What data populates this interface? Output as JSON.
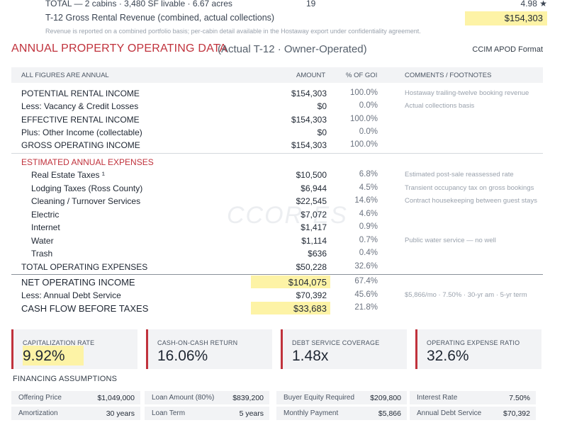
{
  "top": {
    "total_label": "TOTAL — 2 cabins  ·  3,480 SF livable  ·  6.67 acres",
    "total_count": "19",
    "total_rating": "4.98 ★",
    "revenue_label": "T-12 Gross Rental Revenue (combined, actual collections)",
    "revenue_value": "$154,303",
    "note": "Revenue is reported on a combined portfolio basis; per-cabin detail available in the Hostaway export under confidentiality agreement."
  },
  "header": {
    "title": "ANNUAL PROPERTY OPERATING DATA",
    "subtitle": "(Actual T-12 · Owner-Operated)",
    "format": "CCIM APOD Format"
  },
  "columns": {
    "label": "ALL FIGURES ARE ANNUAL",
    "amount": "AMOUNT",
    "pct": "% OF GOI",
    "comments": "COMMENTS / FOOTNOTES"
  },
  "income": [
    {
      "label": "POTENTIAL RENTAL INCOME",
      "amount": "$154,303",
      "pct": "100.0%",
      "comment": "Hostaway trailing-twelve booking revenue"
    },
    {
      "label": "Less: Vacancy & Credit Losses",
      "amount": "$0",
      "pct": "0.0%",
      "comment": "Actual collections basis"
    },
    {
      "label": "EFFECTIVE RENTAL INCOME",
      "amount": "$154,303",
      "pct": "100.0%",
      "comment": ""
    },
    {
      "label": "Plus: Other Income (collectable)",
      "amount": "$0",
      "pct": "0.0%",
      "comment": ""
    },
    {
      "label": "GROSS OPERATING INCOME",
      "amount": "$154,303",
      "pct": "100.0%",
      "comment": ""
    }
  ],
  "expenses_title": "ESTIMATED ANNUAL EXPENSES",
  "expenses": [
    {
      "label": "Real Estate Taxes ¹",
      "amount": "$10,500",
      "pct": "6.8%",
      "comment": "Estimated post-sale reassessed rate"
    },
    {
      "label": "Lodging Taxes (Ross County)",
      "amount": "$6,944",
      "pct": "4.5%",
      "comment": "Transient occupancy tax on gross bookings"
    },
    {
      "label": "Cleaning / Turnover Services",
      "amount": "$22,545",
      "pct": "14.6%",
      "comment": "Contract housekeeping between guest stays"
    },
    {
      "label": "Electric",
      "amount": "$7,072",
      "pct": "4.6%",
      "comment": ""
    },
    {
      "label": "Internet",
      "amount": "$1,417",
      "pct": "0.9%",
      "comment": ""
    },
    {
      "label": "Water",
      "amount": "$1,114",
      "pct": "0.7%",
      "comment": "Public water service — no well"
    },
    {
      "label": "Trash",
      "amount": "$636",
      "pct": "0.4%",
      "comment": ""
    }
  ],
  "total_expenses": {
    "label": "TOTAL OPERATING EXPENSES",
    "amount": "$50,228",
    "pct": "32.6%"
  },
  "noi": {
    "label": "NET OPERATING INCOME",
    "amount": "$104,075",
    "pct": "67.4%"
  },
  "debt": {
    "label": "Less: Annual Debt Service",
    "amount": "$70,392",
    "pct": "45.6%",
    "comment": "$5,866/mo · 7.50% · 30-yr am · 5-yr term"
  },
  "cfbt": {
    "label": "CASH FLOW BEFORE TAXES",
    "amount": "$33,683",
    "pct": "21.8%"
  },
  "metrics": [
    {
      "label": "CAPITALIZATION RATE",
      "value": "9.92%"
    },
    {
      "label": "CASH-ON-CASH RETURN",
      "value": "16.06%"
    },
    {
      "label": "DEBT SERVICE COVERAGE",
      "value": "1.48x"
    },
    {
      "label": "OPERATING EXPENSE RATIO",
      "value": "32.6%"
    }
  ],
  "financing": {
    "title": "FINANCING ASSUMPTIONS",
    "items": [
      {
        "label": "Offering Price",
        "value": "$1,049,000"
      },
      {
        "label": "Loan Amount (80%)",
        "value": "$839,200"
      },
      {
        "label": "Buyer Equity Required",
        "value": "$209,800"
      },
      {
        "label": "Interest Rate",
        "value": "7.50%"
      },
      {
        "label": "Amortization",
        "value": "30 years"
      },
      {
        "label": "Loan Term",
        "value": "5 years"
      },
      {
        "label": "Monthly Payment",
        "value": "$5,866"
      },
      {
        "label": "Annual Debt Service",
        "value": "$70,392"
      }
    ]
  },
  "watermark": "CCOR·ES"
}
